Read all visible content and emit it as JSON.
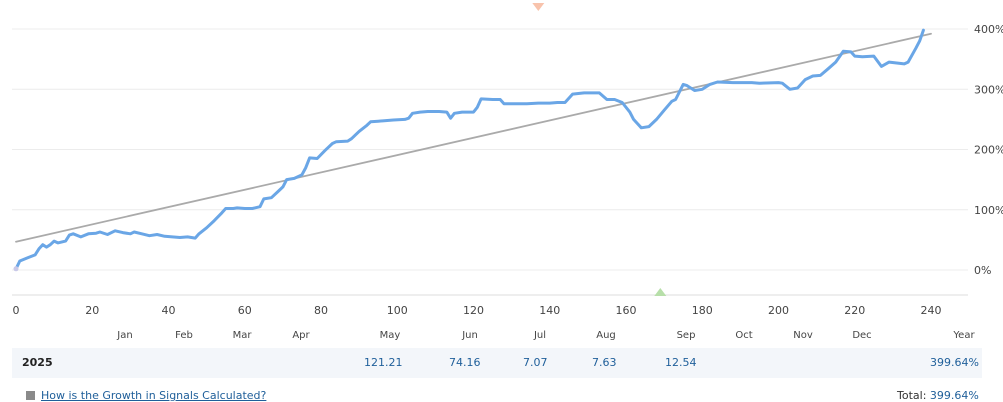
{
  "chart_data": {
    "type": "line",
    "x_range": [
      0,
      240
    ],
    "x_ticks": [
      "0",
      "20",
      "40",
      "60",
      "80",
      "100",
      "120",
      "140",
      "160",
      "180",
      "200",
      "220",
      "240"
    ],
    "y_range": [
      -40,
      400
    ],
    "y_ticks": [
      "0%",
      "100%",
      "200%",
      "300%",
      "400%"
    ],
    "month_labels": [
      "Jan",
      "Feb",
      "Mar",
      "Apr",
      "May",
      "Jun",
      "Jul",
      "Aug",
      "Sep",
      "Oct",
      "Nov",
      "Dec",
      "Year"
    ],
    "series": [
      {
        "color": "#6aa6e6",
        "points": [
          [
            0,
            2
          ],
          [
            1,
            15
          ],
          [
            3,
            20
          ],
          [
            5,
            25
          ],
          [
            6,
            35
          ],
          [
            7,
            42
          ],
          [
            8,
            38
          ],
          [
            9,
            42
          ],
          [
            10,
            48
          ],
          [
            11,
            45
          ],
          [
            13,
            48
          ],
          [
            14,
            58
          ],
          [
            15,
            60
          ],
          [
            17,
            55
          ],
          [
            19,
            60
          ],
          [
            21,
            61
          ],
          [
            22,
            63
          ],
          [
            24,
            59
          ],
          [
            26,
            65
          ],
          [
            28,
            62
          ],
          [
            30,
            60
          ],
          [
            31,
            63
          ],
          [
            33,
            60
          ],
          [
            35,
            57
          ],
          [
            37,
            59
          ],
          [
            39,
            56
          ],
          [
            41,
            55
          ],
          [
            43,
            54
          ],
          [
            45,
            55
          ],
          [
            46,
            54
          ],
          [
            47,
            53
          ],
          [
            48,
            60
          ],
          [
            50,
            70
          ],
          [
            52,
            82
          ],
          [
            54,
            95
          ],
          [
            55,
            102
          ],
          [
            57,
            102
          ],
          [
            58,
            103
          ],
          [
            60,
            102
          ],
          [
            62,
            102
          ],
          [
            64,
            105
          ],
          [
            65,
            118
          ],
          [
            67,
            120
          ],
          [
            69,
            132
          ],
          [
            70,
            138
          ],
          [
            71,
            150
          ],
          [
            73,
            152
          ],
          [
            75,
            158
          ],
          [
            76,
            170
          ],
          [
            77,
            186
          ],
          [
            79,
            185
          ],
          [
            81,
            198
          ],
          [
            83,
            210
          ],
          [
            84,
            213
          ],
          [
            87,
            214
          ],
          [
            88,
            218
          ],
          [
            90,
            230
          ],
          [
            92,
            240
          ],
          [
            93,
            246
          ],
          [
            95,
            247
          ],
          [
            97,
            248
          ],
          [
            99,
            249
          ],
          [
            102,
            250
          ],
          [
            103,
            252
          ],
          [
            104,
            260
          ],
          [
            106,
            262
          ],
          [
            108,
            263
          ],
          [
            111,
            263
          ],
          [
            113,
            262
          ],
          [
            114,
            252
          ],
          [
            115,
            260
          ],
          [
            117,
            262
          ],
          [
            120,
            262
          ],
          [
            121,
            270
          ],
          [
            122,
            284
          ],
          [
            125,
            283
          ],
          [
            127,
            283
          ],
          [
            128,
            276
          ],
          [
            131,
            276
          ],
          [
            134,
            276
          ],
          [
            137,
            277
          ],
          [
            140,
            277
          ],
          [
            142,
            278
          ],
          [
            144,
            278
          ],
          [
            146,
            292
          ],
          [
            149,
            294
          ],
          [
            151,
            294
          ],
          [
            153,
            294
          ],
          [
            155,
            283
          ],
          [
            157,
            283
          ],
          [
            159,
            278
          ],
          [
            161,
            262
          ],
          [
            162,
            250
          ],
          [
            164,
            236
          ],
          [
            166,
            238
          ],
          [
            168,
            250
          ],
          [
            170,
            265
          ],
          [
            172,
            280
          ],
          [
            173,
            283
          ],
          [
            175,
            308
          ],
          [
            176,
            306
          ],
          [
            178,
            298
          ],
          [
            180,
            300
          ],
          [
            182,
            308
          ],
          [
            184,
            312
          ],
          [
            188,
            311
          ],
          [
            193,
            311
          ],
          [
            195,
            310
          ],
          [
            200,
            311
          ],
          [
            201,
            310
          ],
          [
            203,
            300
          ],
          [
            205,
            302
          ],
          [
            207,
            316
          ],
          [
            209,
            322
          ],
          [
            211,
            323
          ],
          [
            213,
            334
          ],
          [
            215,
            345
          ],
          [
            217,
            363
          ],
          [
            219,
            362
          ],
          [
            220,
            355
          ],
          [
            222,
            354
          ],
          [
            225,
            355
          ],
          [
            227,
            338
          ],
          [
            229,
            345
          ],
          [
            233,
            342
          ],
          [
            234,
            345
          ],
          [
            236,
            368
          ],
          [
            237,
            380
          ],
          [
            238,
            398
          ]
        ]
      },
      {
        "color": "#aaaaaa",
        "points": [
          [
            0,
            47
          ],
          [
            240,
            392
          ]
        ]
      }
    ],
    "markers": [
      {
        "x": 137,
        "y": "top",
        "shape": "triangle-down",
        "color": "#f8c3ac"
      },
      {
        "x": 169,
        "y": "bottom",
        "shape": "triangle-up",
        "color": "#b7dfa9"
      }
    ]
  },
  "table": {
    "year": "2025",
    "values": [
      "121.21",
      "74.16",
      "7.07",
      "7.63",
      "12.54"
    ],
    "year_total": "399.64%"
  },
  "footer": {
    "help_link": "How is the Growth in Signals Calculated?",
    "total_label": "Total:",
    "total_value": "399.64%"
  }
}
